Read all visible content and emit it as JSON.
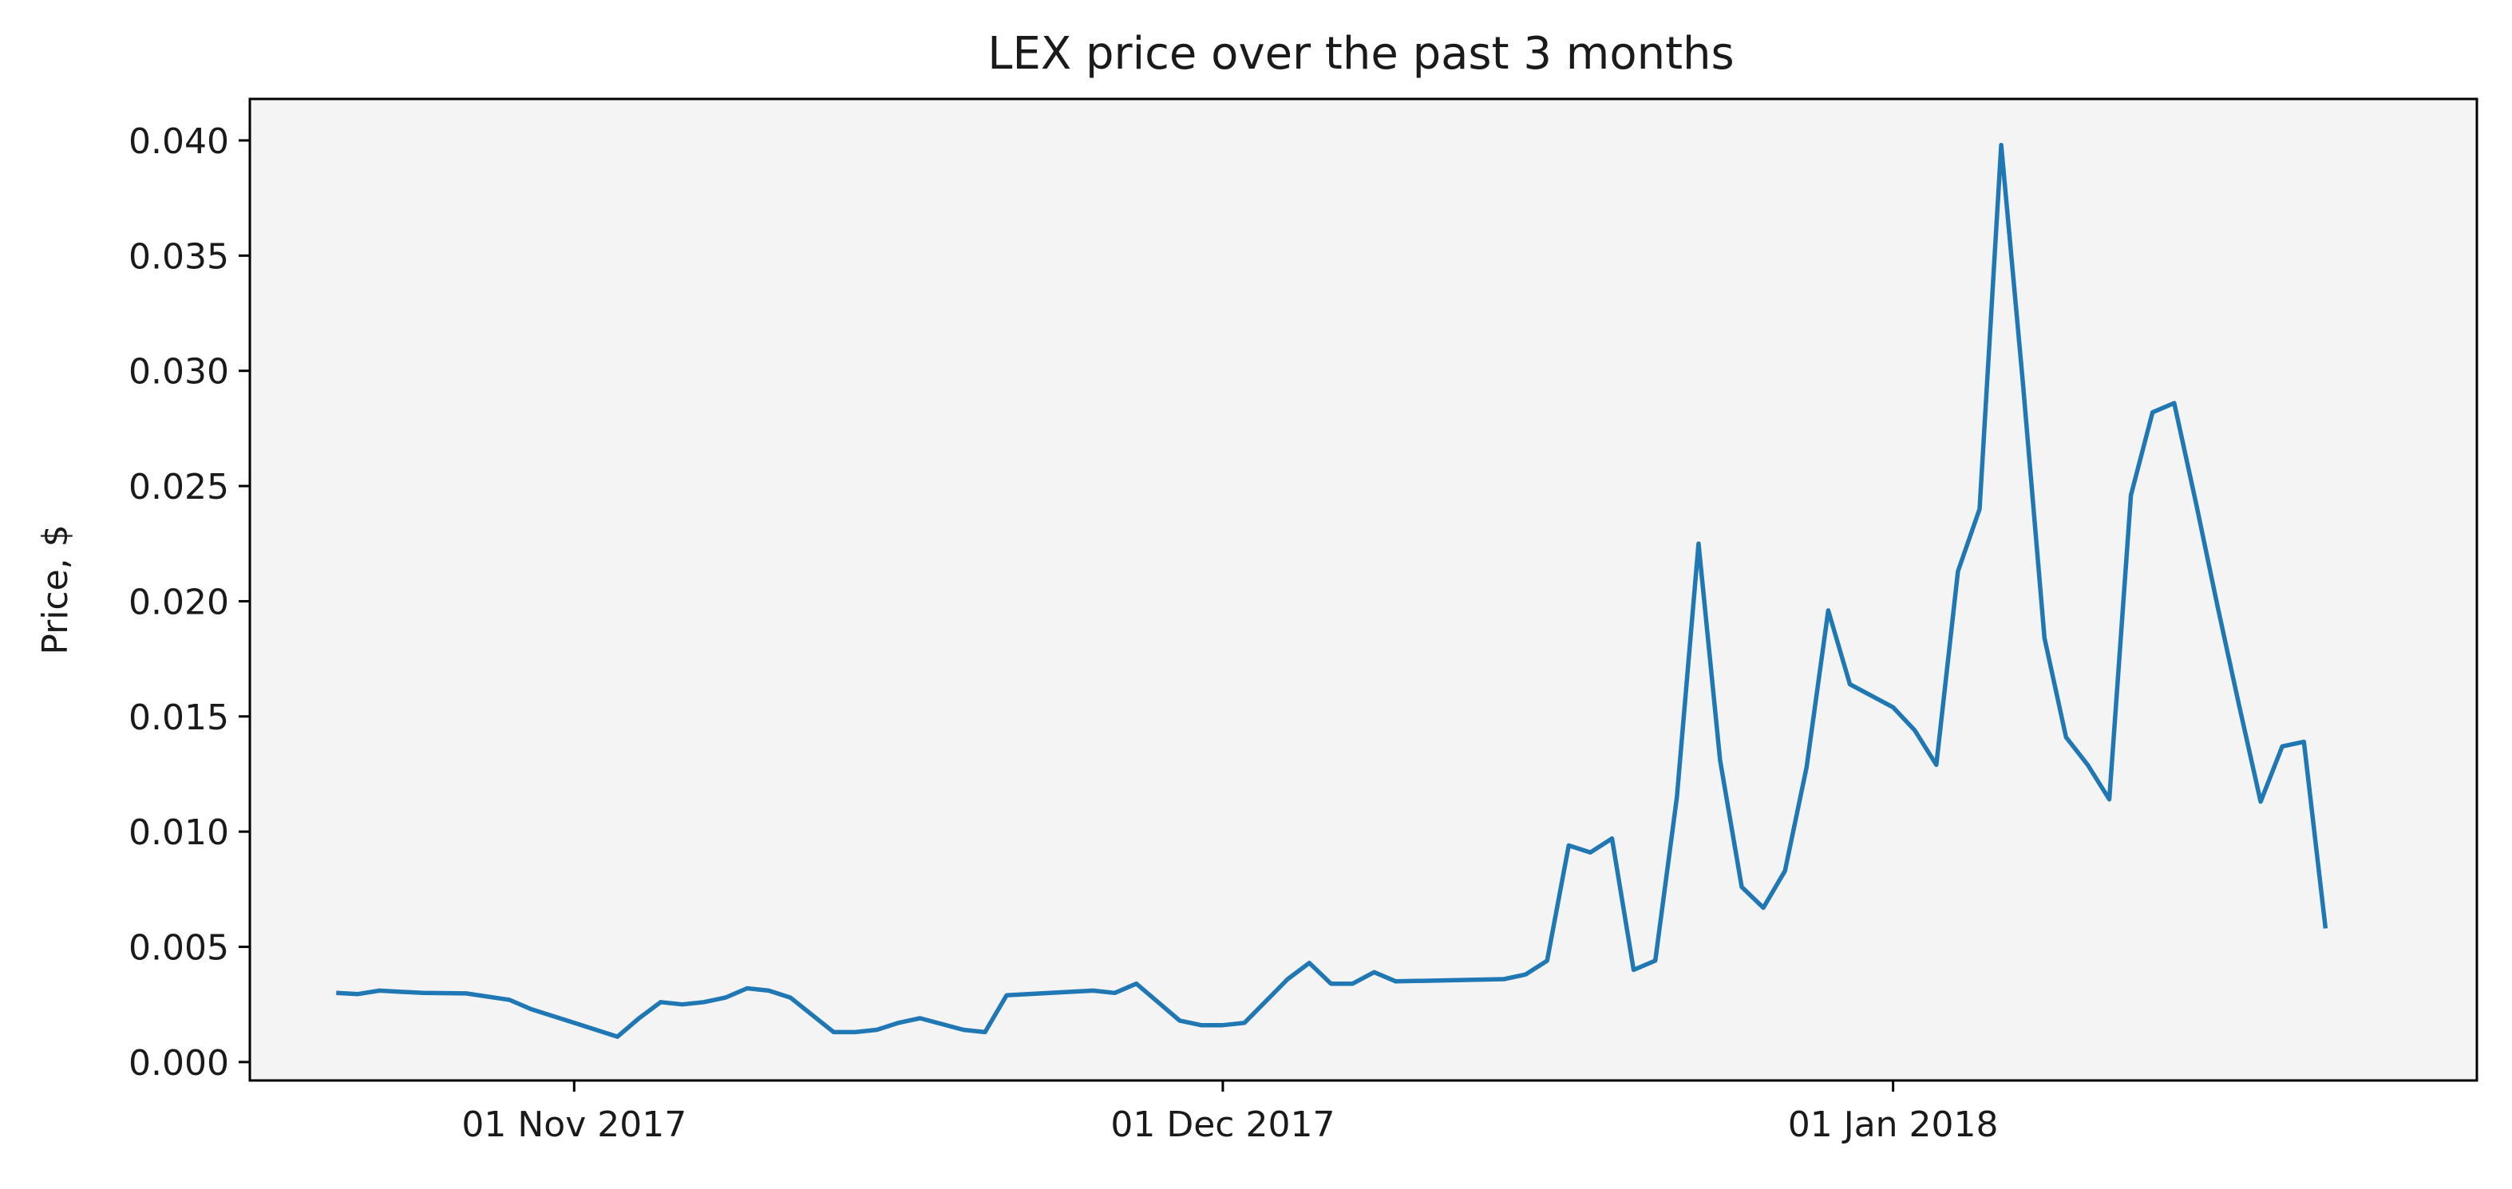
{
  "chart_data": {
    "type": "line",
    "title": "LEX price over the past 3 months",
    "xlabel": "",
    "ylabel": "Price, $",
    "ylim": [
      -0.0008,
      0.0418
    ],
    "xlim": [
      "2017-10-17",
      "2018-01-28"
    ],
    "grid": false,
    "background": "#f4f4f4",
    "line_color": "#1f77b4",
    "y_ticks": [
      {
        "value": 0.0,
        "label": "0.000"
      },
      {
        "value": 0.005,
        "label": "0.005"
      },
      {
        "value": 0.01,
        "label": "0.010"
      },
      {
        "value": 0.015,
        "label": "0.015"
      },
      {
        "value": 0.02,
        "label": "0.020"
      },
      {
        "value": 0.025,
        "label": "0.025"
      },
      {
        "value": 0.03,
        "label": "0.030"
      },
      {
        "value": 0.035,
        "label": "0.035"
      },
      {
        "value": 0.04,
        "label": "0.040"
      }
    ],
    "x_ticks": [
      {
        "value": "2017-11-01",
        "label": "01 Nov 2017"
      },
      {
        "value": "2017-12-01",
        "label": "01 Dec 2017"
      },
      {
        "value": "2018-01-01",
        "label": "01 Jan 2018"
      }
    ],
    "series": [
      {
        "points": [
          [
            "2017-10-21",
            0.003
          ],
          [
            "2017-10-22",
            0.00295
          ],
          [
            "2017-10-23",
            0.0031
          ],
          [
            "2017-10-25",
            0.003
          ],
          [
            "2017-10-27",
            0.00298
          ],
          [
            "2017-10-29",
            0.0027
          ],
          [
            "2017-10-30",
            0.0023
          ],
          [
            "2017-11-01",
            0.0017
          ],
          [
            "2017-11-03",
            0.0011
          ],
          [
            "2017-11-04",
            0.0019
          ],
          [
            "2017-11-05",
            0.0026
          ],
          [
            "2017-11-06",
            0.0025
          ],
          [
            "2017-11-07",
            0.0026
          ],
          [
            "2017-11-08",
            0.0028
          ],
          [
            "2017-11-09",
            0.0032
          ],
          [
            "2017-11-10",
            0.0031
          ],
          [
            "2017-11-11",
            0.0028
          ],
          [
            "2017-11-13",
            0.0013
          ],
          [
            "2017-11-14",
            0.0013
          ],
          [
            "2017-11-15",
            0.0014
          ],
          [
            "2017-11-16",
            0.0017
          ],
          [
            "2017-11-17",
            0.0019
          ],
          [
            "2017-11-19",
            0.0014
          ],
          [
            "2017-11-20",
            0.0013
          ],
          [
            "2017-11-21",
            0.0029
          ],
          [
            "2017-11-23",
            0.003
          ],
          [
            "2017-11-25",
            0.0031
          ],
          [
            "2017-11-26",
            0.003
          ],
          [
            "2017-11-27",
            0.0034
          ],
          [
            "2017-11-29",
            0.0018
          ],
          [
            "2017-11-30",
            0.0016
          ],
          [
            "2017-12-01",
            0.0016
          ],
          [
            "2017-12-02",
            0.0017
          ],
          [
            "2017-12-04",
            0.0036
          ],
          [
            "2017-12-05",
            0.0043
          ],
          [
            "2017-12-06",
            0.0034
          ],
          [
            "2017-12-07",
            0.0034
          ],
          [
            "2017-12-08",
            0.0039
          ],
          [
            "2017-12-09",
            0.0035
          ],
          [
            "2017-12-14",
            0.0036
          ],
          [
            "2017-12-15",
            0.0038
          ],
          [
            "2017-12-16",
            0.0044
          ],
          [
            "2017-12-17",
            0.0094
          ],
          [
            "2017-12-18",
            0.0091
          ],
          [
            "2017-12-19",
            0.0097
          ],
          [
            "2017-12-20",
            0.004
          ],
          [
            "2017-12-21",
            0.0044
          ],
          [
            "2017-12-22",
            0.0115
          ],
          [
            "2017-12-23",
            0.0225
          ],
          [
            "2017-12-24",
            0.0131
          ],
          [
            "2017-12-25",
            0.0076
          ],
          [
            "2017-12-26",
            0.0067
          ],
          [
            "2017-12-27",
            0.0083
          ],
          [
            "2017-12-28",
            0.0128
          ],
          [
            "2017-12-29",
            0.0196
          ],
          [
            "2017-12-30",
            0.0164
          ],
          [
            "2018-01-01",
            0.0154
          ],
          [
            "2018-01-02",
            0.0144
          ],
          [
            "2018-01-03",
            0.0129
          ],
          [
            "2018-01-04",
            0.0213
          ],
          [
            "2018-01-05",
            0.024
          ],
          [
            "2018-01-06",
            0.0398
          ],
          [
            "2018-01-07",
            0.0295
          ],
          [
            "2018-01-08",
            0.0184
          ],
          [
            "2018-01-09",
            0.0141
          ],
          [
            "2018-01-10",
            0.0129
          ],
          [
            "2018-01-11",
            0.0114
          ],
          [
            "2018-01-12",
            0.0246
          ],
          [
            "2018-01-13",
            0.0282
          ],
          [
            "2018-01-14",
            0.0286
          ],
          [
            "2018-01-15",
            0.0243
          ],
          [
            "2018-01-16",
            0.0198
          ],
          [
            "2018-01-17",
            0.0155
          ],
          [
            "2018-01-18",
            0.0113
          ],
          [
            "2018-01-19",
            0.0137
          ],
          [
            "2018-01-20",
            0.0139
          ],
          [
            "2018-01-21",
            0.0058
          ]
        ]
      }
    ]
  }
}
